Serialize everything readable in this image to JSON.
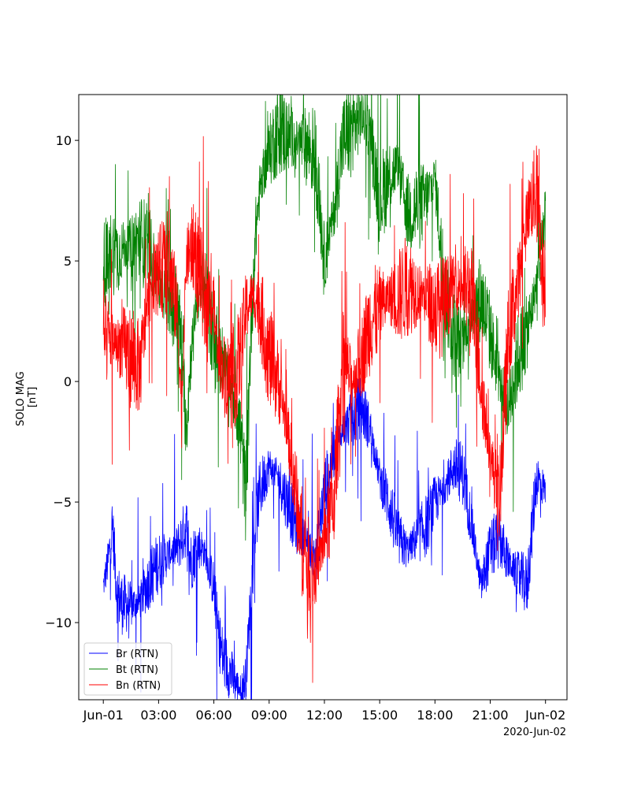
{
  "chart_data": {
    "type": "line",
    "title": "",
    "xlabel": "",
    "ylabel": "SOLO MAG\n[nT]",
    "ylabel_lines": [
      "SOLO MAG",
      "[nT]"
    ],
    "x_start": "2020-06-01T00:00",
    "x_end": "2020-06-02T00:00",
    "xlim": [
      "2020-05-31T22:40",
      "2020-06-02T01:10"
    ],
    "ylim": [
      -13.2,
      11.9
    ],
    "x_ticks": [
      {
        "hour": 0,
        "label": "Jun-01"
      },
      {
        "hour": 3,
        "label": "03:00"
      },
      {
        "hour": 6,
        "label": "06:00"
      },
      {
        "hour": 9,
        "label": "09:00"
      },
      {
        "hour": 12,
        "label": "12:00"
      },
      {
        "hour": 15,
        "label": "15:00"
      },
      {
        "hour": 18,
        "label": "18:00"
      },
      {
        "hour": 21,
        "label": "21:00"
      },
      {
        "hour": 24,
        "label": "Jun-02"
      }
    ],
    "x_offset_label": "2020-Jun-02",
    "y_ticks": [
      {
        "value": 10,
        "label": "10"
      },
      {
        "value": 5,
        "label": "5"
      },
      {
        "value": 0,
        "label": "0"
      },
      {
        "value": -5,
        "label": "−5"
      },
      {
        "value": -10,
        "label": "−10"
      }
    ],
    "grid": false,
    "legend_placement": "lower-left",
    "series": [
      {
        "name": "Br (RTN)",
        "color": "#0000ff",
        "x_hours": [
          0,
          0.25,
          0.5,
          0.75,
          1,
          1.5,
          2,
          2.5,
          3,
          3.5,
          4,
          4.25,
          4.5,
          4.75,
          5,
          5.25,
          5.5,
          6,
          6.25,
          6.5,
          7,
          7.25,
          7.5,
          7.75,
          8,
          8.25,
          8.5,
          9,
          9.5,
          10,
          10.5,
          11,
          11.5,
          12,
          12.5,
          13,
          13.5,
          14,
          14.5,
          15,
          15.5,
          16,
          16.5,
          17,
          17.5,
          18,
          18.5,
          19,
          19.5,
          20,
          20.5,
          21,
          21.5,
          22,
          22.5,
          23,
          23.5,
          24
        ],
        "values": [
          -8.5,
          -7.5,
          -6,
          -8.8,
          -9.2,
          -9.3,
          -9.1,
          -8.2,
          -7.5,
          -7.2,
          -6.9,
          -6.5,
          -6.0,
          -7.5,
          -7.0,
          -6.8,
          -7.1,
          -8.5,
          -10.5,
          -11.5,
          -12.2,
          -12.6,
          -12.8,
          -12.2,
          -9,
          -6,
          -4.5,
          -3.5,
          -4,
          -5,
          -6,
          -6.5,
          -7.5,
          -4.5,
          -3,
          -2,
          -1.5,
          -1,
          -2,
          -4,
          -5,
          -6.5,
          -7,
          -6.5,
          -6,
          -5,
          -4.5,
          -3.5,
          -3.8,
          -6,
          -8.5,
          -7,
          -6.5,
          -7.5,
          -8,
          -8.5,
          -4,
          -4.5
        ]
      },
      {
        "name": "Bt (RTN)",
        "color": "#008000",
        "x_hours": [
          0,
          0.25,
          0.5,
          0.75,
          1,
          1.5,
          2,
          2.5,
          3,
          3.5,
          4,
          4.25,
          4.5,
          4.75,
          5,
          5.25,
          5.5,
          6,
          6.25,
          6.5,
          7,
          7.25,
          7.5,
          7.75,
          8,
          8.25,
          8.5,
          9,
          9.5,
          10,
          10.5,
          11,
          11.5,
          12,
          12.5,
          13,
          13.5,
          14,
          14.5,
          15,
          15.5,
          16,
          16.5,
          17,
          17.5,
          18,
          18.5,
          19,
          19.5,
          20,
          20.5,
          21,
          21.5,
          22,
          22.5,
          23,
          23.5,
          24
        ],
        "values": [
          5.0,
          4.8,
          5.5,
          5.2,
          5.5,
          5.6,
          5.9,
          5.5,
          4.0,
          3.5,
          3.0,
          1.5,
          -2,
          1,
          3,
          4,
          4,
          1.5,
          1,
          1,
          -0.5,
          -1,
          -2.5,
          -5,
          2,
          6,
          8,
          9.5,
          10.5,
          10.2,
          10,
          9.8,
          9.5,
          5,
          7,
          10,
          10.5,
          11,
          10.3,
          7.5,
          8.5,
          9,
          7,
          7.2,
          7.5,
          8.5,
          4,
          2,
          1.5,
          3,
          3.5,
          2,
          0,
          -1,
          1,
          2,
          4,
          7
        ]
      },
      {
        "name": "Bn (RTN)",
        "color": "#ff0000",
        "x_hours": [
          0,
          0.25,
          0.5,
          0.75,
          1,
          1.5,
          2,
          2.5,
          3,
          3.5,
          4,
          4.25,
          4.5,
          4.75,
          5,
          5.25,
          5.5,
          6,
          6.25,
          6.5,
          7,
          7.25,
          7.5,
          7.75,
          8,
          8.25,
          8.5,
          9,
          9.5,
          10,
          10.5,
          11,
          11.5,
          12,
          12.5,
          13,
          13.5,
          14,
          14.5,
          15,
          15.5,
          16,
          16.5,
          17,
          17.5,
          18,
          18.5,
          19,
          19.5,
          20,
          20.5,
          21,
          21.5,
          22,
          22.5,
          23,
          23.5,
          24
        ],
        "values": [
          1.5,
          1.8,
          1.8,
          1.5,
          1.5,
          1.0,
          0.5,
          4,
          4.5,
          5,
          3,
          -1,
          5,
          5.5,
          5.5,
          4.5,
          3.5,
          3,
          1,
          0.5,
          0,
          0.5,
          1.5,
          3,
          3.5,
          3.5,
          3,
          1,
          0,
          -2,
          -5,
          -7.5,
          -8,
          -6.5,
          -5,
          1,
          0,
          1,
          2.5,
          3,
          3.5,
          3.5,
          4,
          3.8,
          3.5,
          3,
          3.2,
          4,
          4,
          3.5,
          0,
          -3,
          -5,
          2,
          4,
          7,
          8,
          3
        ]
      }
    ]
  }
}
